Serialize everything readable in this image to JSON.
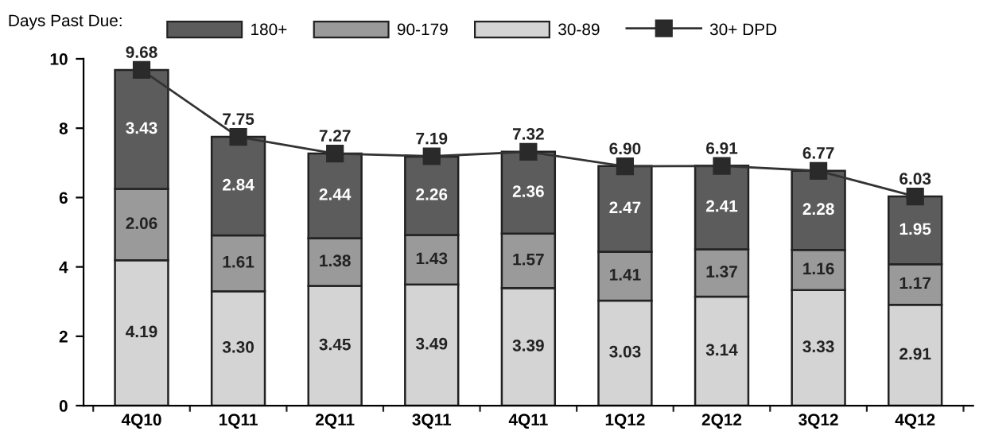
{
  "chart_data": {
    "type": "bar",
    "stacked": true,
    "legend_title": "Days Past Due:",
    "legend": "top left",
    "categories": [
      "4Q10",
      "1Q11",
      "2Q11",
      "3Q11",
      "4Q11",
      "1Q12",
      "2Q12",
      "3Q12",
      "4Q12"
    ],
    "ylim": [
      0,
      10
    ],
    "yticks": [
      0,
      2,
      4,
      6,
      8,
      10
    ],
    "grid": false,
    "series": [
      {
        "name": "30-89",
        "color": "#d4d4d4",
        "values": [
          4.19,
          3.3,
          3.45,
          3.49,
          3.39,
          3.03,
          3.14,
          3.33,
          2.91
        ],
        "value_labels": [
          "4.19",
          "3.30",
          "3.45",
          "3.49",
          "3.39",
          "3.03",
          "3.14",
          "3.33",
          "2.91"
        ]
      },
      {
        "name": "90-179",
        "color": "#9a9a9a",
        "values": [
          2.06,
          1.61,
          1.38,
          1.43,
          1.57,
          1.41,
          1.37,
          1.16,
          1.17
        ],
        "value_labels": [
          "2.06",
          "1.61",
          "1.38",
          "1.43",
          "1.57",
          "1.41",
          "1.37",
          "1.16",
          "1.17"
        ]
      },
      {
        "name": "180+",
        "color": "#5c5c5c",
        "values": [
          3.43,
          2.84,
          2.44,
          2.26,
          2.36,
          2.47,
          2.41,
          2.28,
          1.95
        ],
        "value_labels": [
          "3.43",
          "2.84",
          "2.44",
          "2.26",
          "2.36",
          "2.47",
          "2.41",
          "2.28",
          "1.95"
        ]
      },
      {
        "name": "30+ DPD",
        "type": "line",
        "marker": "square",
        "line_style": "solid",
        "color": "#333333",
        "values": [
          9.68,
          7.75,
          7.27,
          7.19,
          7.32,
          6.9,
          6.91,
          6.77,
          6.03
        ],
        "value_labels": [
          "9.68",
          "7.75",
          "7.27",
          "7.19",
          "7.32",
          "6.90",
          "6.91",
          "6.77",
          "6.03"
        ]
      }
    ]
  }
}
